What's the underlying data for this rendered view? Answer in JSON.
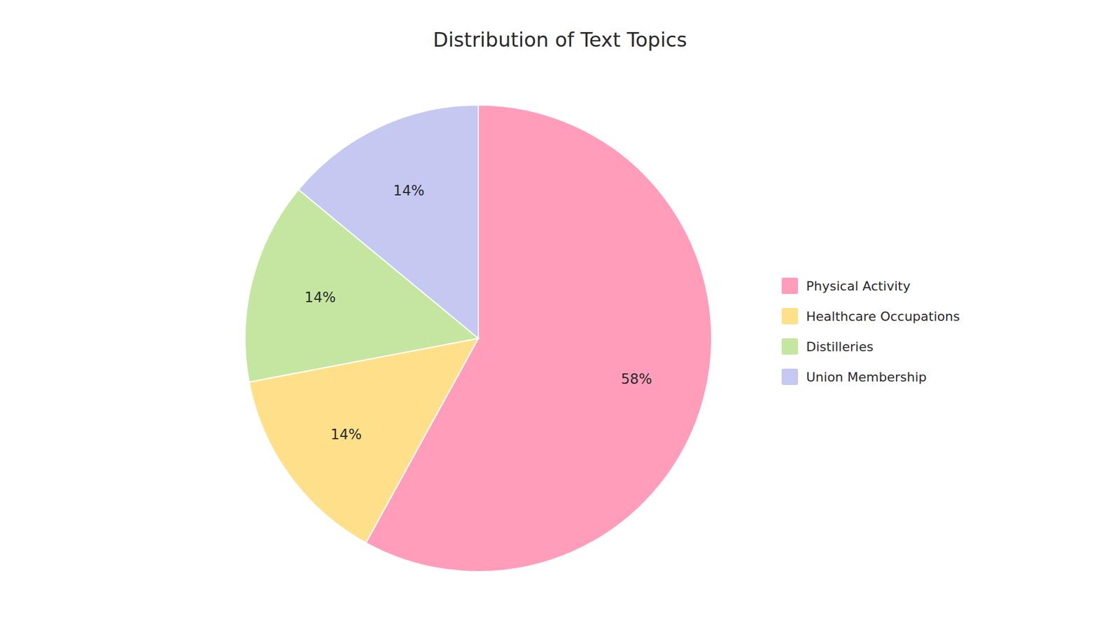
{
  "chart_data": {
    "type": "pie",
    "title": "Distribution of Text Topics",
    "categories": [
      "Physical Activity",
      "Healthcare Occupations",
      "Distilleries",
      "Union Membership"
    ],
    "values": [
      58,
      14,
      14,
      14
    ],
    "value_labels": [
      "58%",
      "14%",
      "14%",
      "14%"
    ],
    "colors": [
      "#FF9DBB",
      "#FFE08A",
      "#C5E6A0",
      "#C5C8F0"
    ],
    "data_labels": true,
    "legend": "right"
  }
}
